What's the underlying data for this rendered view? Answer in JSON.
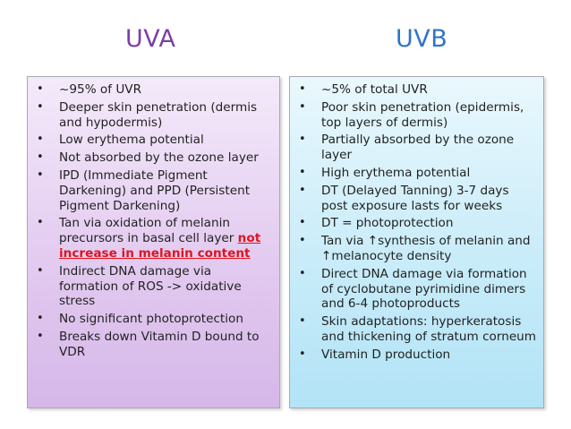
{
  "uva": {
    "title": "UVA",
    "items": [
      {
        "text": "~95% of UVR"
      },
      {
        "text": "Deeper skin penetration (dermis and hypodermis)"
      },
      {
        "text": "Low erythema potential"
      },
      {
        "text": "Not absorbed by the ozone layer"
      },
      {
        "text": "IPD (Immediate Pigment Darkening) and PPD (Persistent Pigment Darkening)"
      },
      {
        "text": "Tan via oxidation of melanin precursors in basal cell layer ",
        "highlight": "not increase in melanin content"
      },
      {
        "text": "Indirect DNA damage via formation of ROS -> oxidative stress"
      },
      {
        "text": "No significant photoprotection"
      },
      {
        "text": "Breaks down Vitamin D bound to VDR"
      }
    ]
  },
  "uvb": {
    "title": "UVB",
    "items": [
      {
        "text": "~5% of total UVR"
      },
      {
        "text": "Poor skin penetration (epidermis, top layers of dermis)"
      },
      {
        "text": "Partially absorbed by the ozone layer"
      },
      {
        "text": "High erythema potential"
      },
      {
        "text": "DT (Delayed Tanning) 3-7 days post exposure lasts for weeks"
      },
      {
        "text": "DT = photoprotection"
      },
      {
        "text": "Tan via ↑synthesis of melanin and ↑melanocyte density"
      },
      {
        "text": "Direct DNA damage via formation of cyclobutane pyrimidine dimers and 6-4 photoproducts"
      },
      {
        "text": "Skin adaptations: hyperkeratosis and thickening of stratum corneum"
      },
      {
        "text": "Vitamin D production"
      }
    ]
  },
  "bullet_glyph": "•",
  "colors": {
    "uva_title": "#7a3fa8",
    "uvb_title": "#2f74c9",
    "highlight": "#e0141e"
  }
}
